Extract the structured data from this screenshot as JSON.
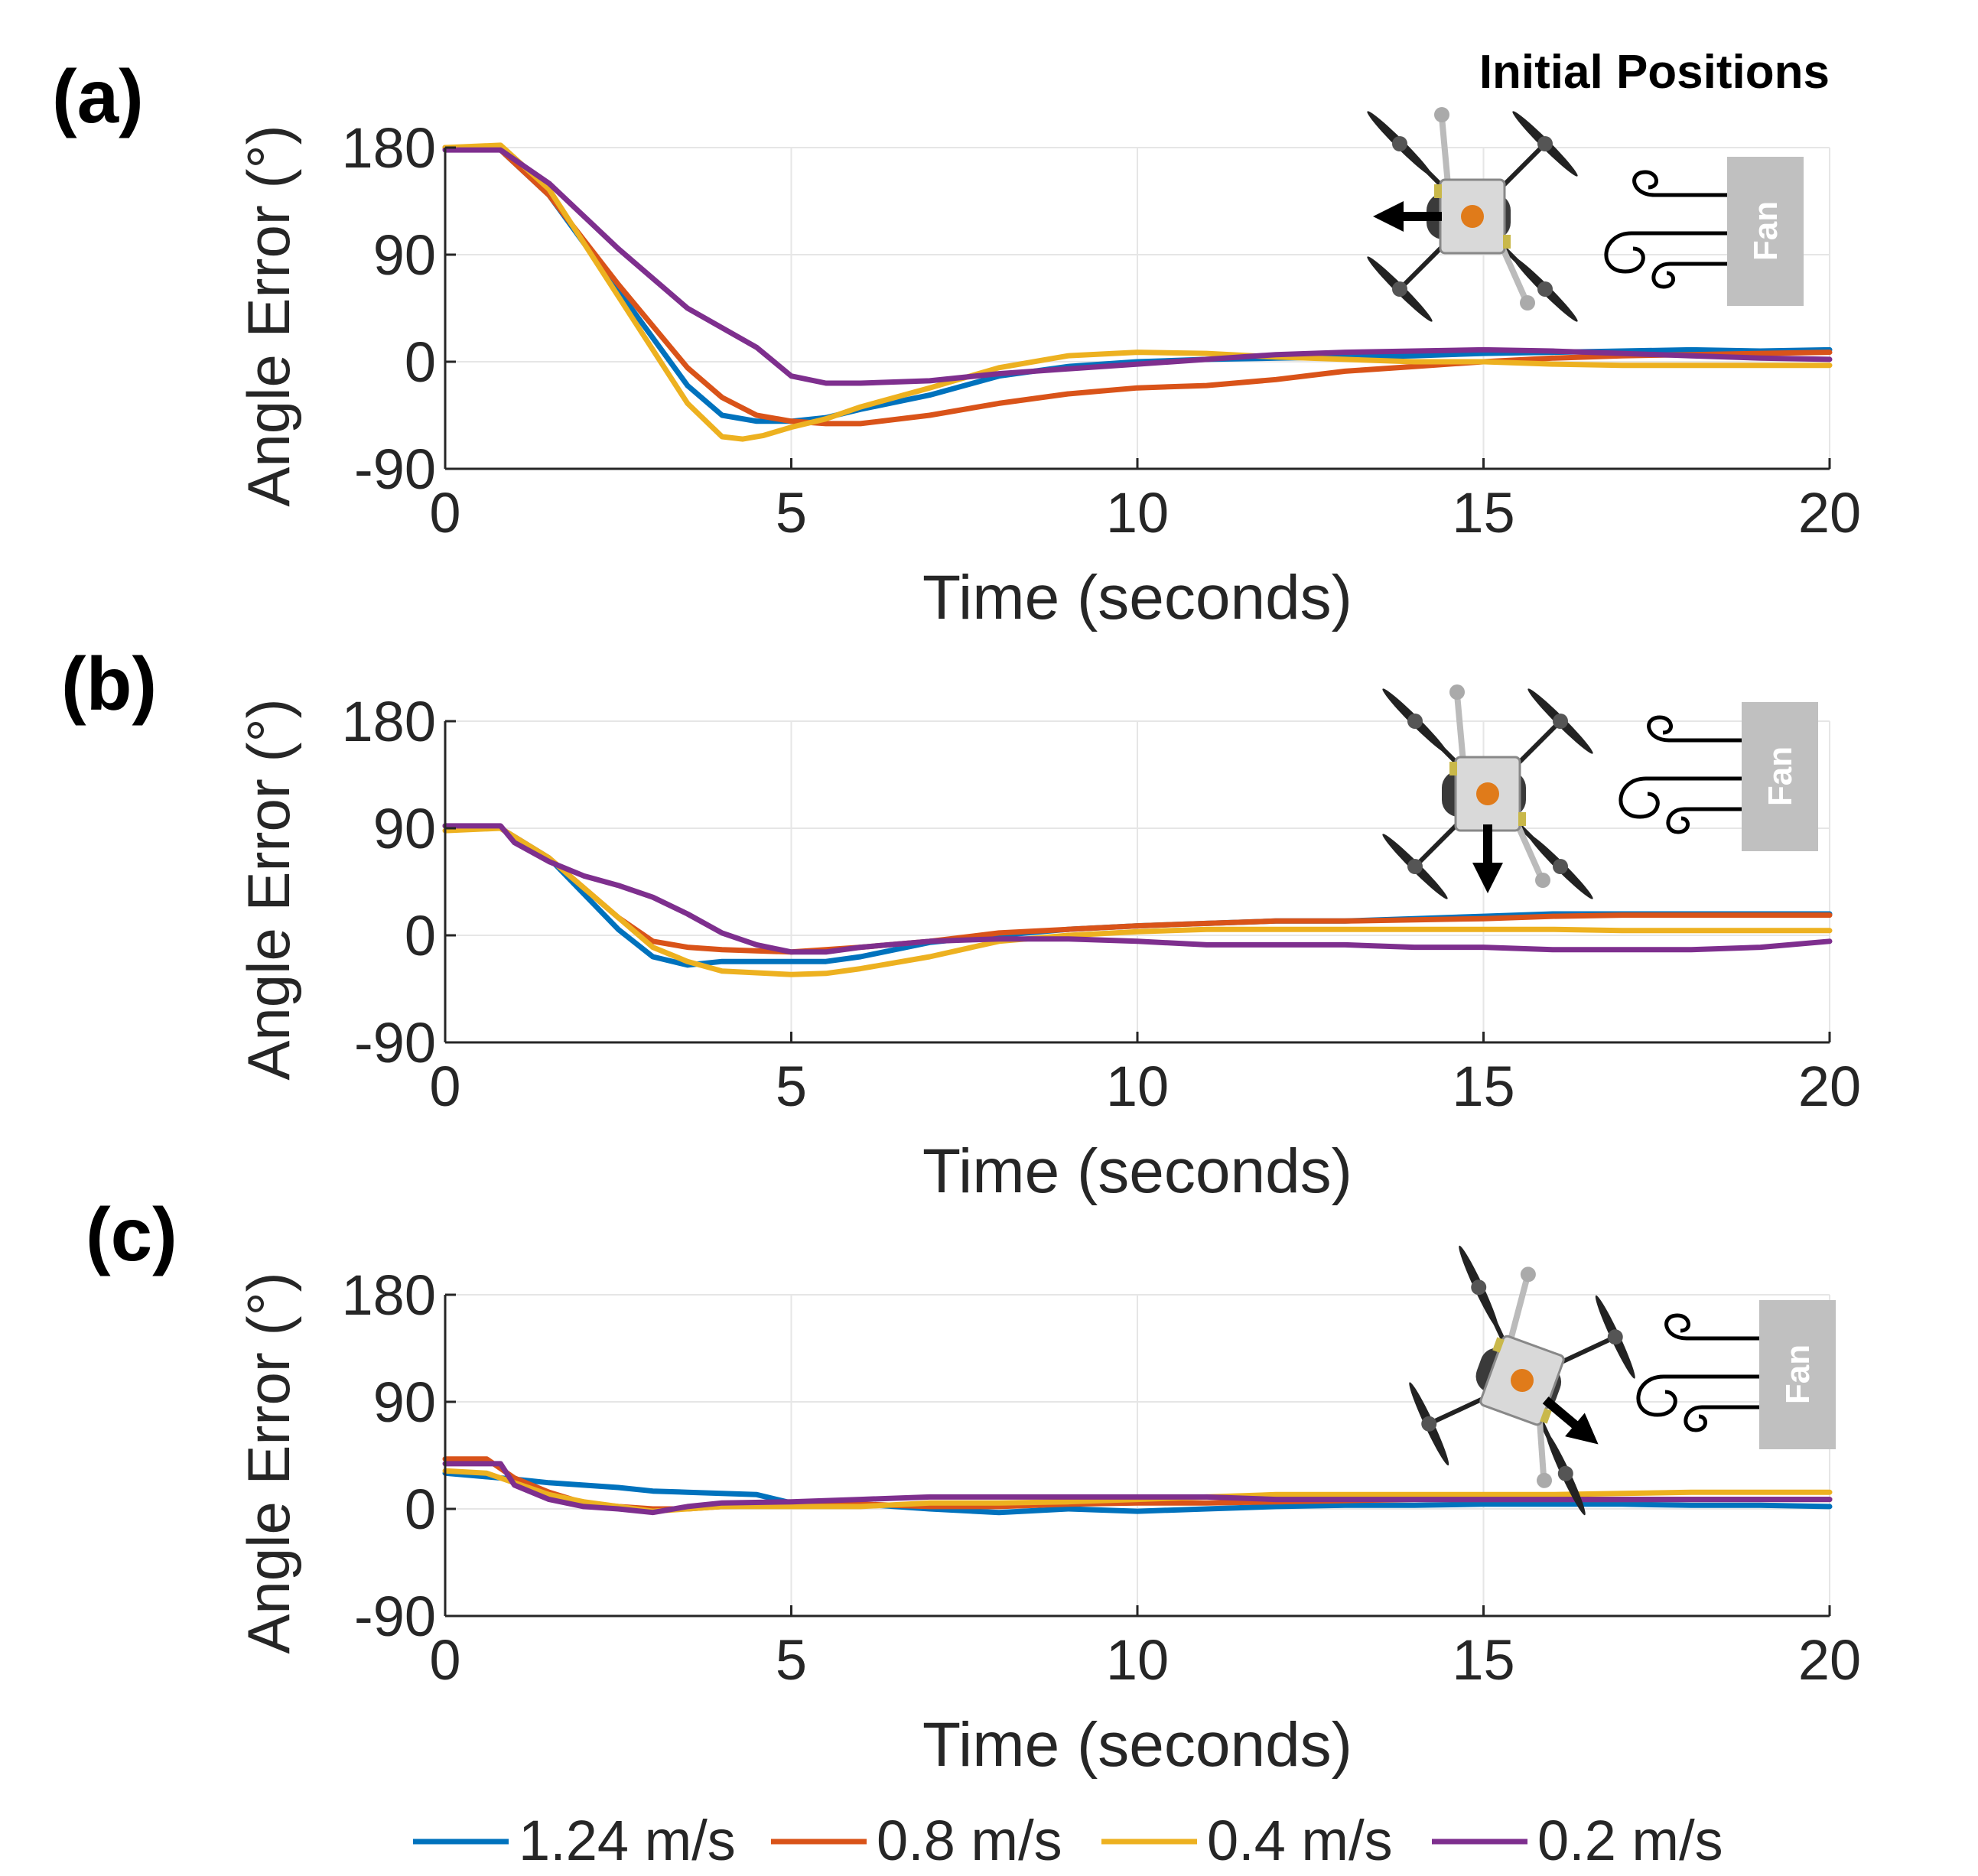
{
  "figure": {
    "header": "Initial Positions",
    "fan_label": "Fan"
  },
  "legend": [
    {
      "name": "1.24 m/s",
      "color": "#0072BD"
    },
    {
      "name": "0.8 m/s",
      "color": "#D95319"
    },
    {
      "name": "0.4 m/s",
      "color": "#EDB120"
    },
    {
      "name": "0.2 m/s",
      "color": "#7E2F8E"
    }
  ],
  "chart_data": [
    {
      "type": "line",
      "panel_label": "(a)",
      "xlabel": "Time (seconds)",
      "ylabel": "Angle Error (°)",
      "xlim": [
        0,
        20
      ],
      "ylim": [
        -90,
        180
      ],
      "xticks": [
        "0",
        "5",
        "10",
        "15",
        "20"
      ],
      "yticks": [
        "180",
        "90",
        "0",
        "-90"
      ],
      "grid": true,
      "drone_heading": "left",
      "series": [
        {
          "name": "1.24 m/s",
          "color": "#0072BD",
          "x": [
            0,
            0.8,
            1.5,
            2.5,
            3.5,
            4,
            4.5,
            5,
            5.5,
            6,
            7,
            8,
            9,
            10,
            11,
            12,
            13,
            14,
            15,
            16,
            17,
            18,
            19,
            20
          ],
          "y": [
            180,
            178,
            140,
            60,
            -20,
            -45,
            -50,
            -50,
            -47,
            -40,
            -28,
            -12,
            -4,
            0,
            2,
            3,
            4,
            5,
            7,
            8,
            9,
            10,
            9,
            10
          ]
        },
        {
          "name": "0.8 m/s",
          "color": "#D95319",
          "x": [
            0,
            0.8,
            1.5,
            2.5,
            3.5,
            4,
            4.5,
            5,
            5.5,
            6,
            7,
            8,
            9,
            10,
            11,
            12,
            13,
            14,
            15,
            16,
            17,
            18,
            19,
            20
          ],
          "y": [
            180,
            178,
            140,
            65,
            -5,
            -30,
            -45,
            -50,
            -52,
            -52,
            -45,
            -35,
            -27,
            -22,
            -20,
            -15,
            -8,
            -4,
            0,
            3,
            5,
            6,
            7,
            8
          ]
        },
        {
          "name": "0.4 m/s",
          "color": "#EDB120",
          "x": [
            0,
            0.8,
            1.5,
            2.5,
            3.5,
            4,
            4.3,
            4.6,
            5,
            5.5,
            6,
            7,
            8,
            9,
            10,
            11,
            12,
            13,
            14,
            15,
            16,
            17,
            18,
            19,
            20
          ],
          "y": [
            180,
            182,
            145,
            55,
            -35,
            -63,
            -65,
            -62,
            -55,
            -48,
            -38,
            -22,
            -5,
            5,
            8,
            7,
            4,
            2,
            0,
            0,
            -2,
            -3,
            -3,
            -3,
            -3
          ]
        },
        {
          "name": "0.2 m/s",
          "color": "#7E2F8E",
          "x": [
            0,
            0.8,
            1.5,
            2.5,
            3.5,
            4.5,
            5,
            5.5,
            6,
            7,
            8,
            9,
            10,
            11,
            12,
            13,
            14,
            15,
            16,
            17,
            18,
            19,
            20
          ],
          "y": [
            178,
            178,
            150,
            95,
            45,
            12,
            -12,
            -18,
            -18,
            -16,
            -10,
            -6,
            -2,
            2,
            6,
            8,
            9,
            10,
            9,
            7,
            5,
            3,
            2
          ]
        }
      ]
    },
    {
      "type": "line",
      "panel_label": "(b)",
      "xlabel": "Time (seconds)",
      "ylabel": "Angle Error (°)",
      "xlim": [
        0,
        20
      ],
      "ylim": [
        -90,
        180
      ],
      "xticks": [
        "0",
        "5",
        "10",
        "15",
        "20"
      ],
      "yticks": [
        "180",
        "90",
        "0",
        "-90"
      ],
      "grid": true,
      "drone_heading": "down",
      "series": [
        {
          "name": "1.24 m/s",
          "color": "#0072BD",
          "x": [
            0,
            0.8,
            1.5,
            2.5,
            3,
            3.5,
            4,
            5,
            5.5,
            6,
            7,
            8,
            9,
            10,
            11,
            12,
            13,
            14,
            15,
            16,
            17,
            18,
            19,
            20
          ],
          "y": [
            92,
            90,
            65,
            5,
            -18,
            -25,
            -22,
            -22,
            -22,
            -18,
            -6,
            0,
            5,
            8,
            10,
            12,
            12,
            14,
            16,
            18,
            18,
            18,
            18,
            18
          ]
        },
        {
          "name": "0.8 m/s",
          "color": "#D95319",
          "x": [
            0,
            0.8,
            1.5,
            2.5,
            3,
            3.5,
            4,
            5,
            5.5,
            6,
            7,
            8,
            9,
            10,
            11,
            12,
            13,
            14,
            15,
            16,
            17,
            18,
            19,
            20
          ],
          "y": [
            92,
            90,
            65,
            15,
            -5,
            -10,
            -12,
            -14,
            -12,
            -10,
            -5,
            2,
            5,
            8,
            10,
            12,
            12,
            13,
            14,
            16,
            17,
            17,
            17,
            17
          ]
        },
        {
          "name": "0.4 m/s",
          "color": "#EDB120",
          "x": [
            0,
            0.8,
            1.5,
            2.5,
            3,
            3.5,
            4,
            5,
            5.5,
            6,
            7,
            8,
            9,
            10,
            11,
            12,
            13,
            14,
            15,
            16,
            17,
            18,
            19,
            20
          ],
          "y": [
            88,
            90,
            65,
            15,
            -10,
            -22,
            -30,
            -33,
            -32,
            -28,
            -18,
            -5,
            0,
            3,
            5,
            5,
            5,
            5,
            5,
            5,
            4,
            4,
            4,
            4
          ]
        },
        {
          "name": "0.2 m/s",
          "color": "#7E2F8E",
          "x": [
            0,
            0.8,
            1,
            1.5,
            2,
            2.5,
            3,
            3.5,
            4,
            4.5,
            5,
            5.5,
            6,
            7,
            8,
            9,
            10,
            11,
            12,
            13,
            14,
            15,
            16,
            17,
            18,
            19,
            20
          ],
          "y": [
            92,
            92,
            78,
            62,
            50,
            42,
            32,
            18,
            2,
            -8,
            -14,
            -14,
            -10,
            -5,
            -3,
            -3,
            -5,
            -8,
            -8,
            -8,
            -10,
            -10,
            -12,
            -12,
            -12,
            -10,
            -5
          ]
        }
      ]
    },
    {
      "type": "line",
      "panel_label": "(c)",
      "xlabel": "Time (seconds)",
      "ylabel": "Angle Error (°)",
      "xlim": [
        0,
        20
      ],
      "ylim": [
        -90,
        180
      ],
      "xticks": [
        "0",
        "5",
        "10",
        "15",
        "20"
      ],
      "yticks": [
        "180",
        "90",
        "0",
        "-90"
      ],
      "grid": true,
      "drone_heading": "down-right",
      "series": [
        {
          "name": "1.24 m/s",
          "color": "#0072BD",
          "x": [
            0,
            1,
            1.5,
            2,
            2.5,
            3,
            3.5,
            4,
            4.5,
            5,
            6,
            7,
            8,
            9,
            10,
            11,
            12,
            13,
            14,
            15,
            16,
            17,
            18,
            19,
            20
          ],
          "y": [
            30,
            25,
            22,
            20,
            18,
            15,
            14,
            13,
            12,
            5,
            4,
            0,
            -3,
            0,
            -2,
            0,
            2,
            3,
            3,
            4,
            4,
            4,
            3,
            3,
            2
          ]
        },
        {
          "name": "0.8 m/s",
          "color": "#D95319",
          "x": [
            0,
            0.6,
            1,
            1.5,
            2,
            2.5,
            3,
            3.5,
            4,
            5,
            6,
            7,
            8,
            9,
            10,
            11,
            12,
            13,
            14,
            15,
            16,
            17,
            18,
            19,
            20
          ],
          "y": [
            42,
            42,
            26,
            14,
            5,
            2,
            0,
            0,
            2,
            3,
            4,
            2,
            2,
            4,
            5,
            5,
            6,
            7,
            8,
            8,
            8,
            8,
            8,
            8,
            8
          ]
        },
        {
          "name": "0.4 m/s",
          "color": "#EDB120",
          "x": [
            0,
            0.6,
            1,
            1.5,
            2,
            2.5,
            3,
            3.5,
            4,
            5,
            6,
            7,
            8,
            9,
            10,
            11,
            12,
            13,
            14,
            15,
            16,
            17,
            18,
            19,
            20
          ],
          "y": [
            32,
            30,
            22,
            12,
            6,
            2,
            -2,
            0,
            2,
            2,
            2,
            5,
            5,
            6,
            8,
            10,
            12,
            12,
            12,
            12,
            12,
            13,
            14,
            14,
            14
          ]
        },
        {
          "name": "0.2 m/s",
          "color": "#7E2F8E",
          "x": [
            0,
            0.8,
            1,
            1.5,
            2,
            2.5,
            3,
            3.5,
            4,
            5,
            6,
            7,
            8,
            9,
            10,
            11,
            12,
            13,
            14,
            15,
            16,
            17,
            18,
            19,
            20
          ],
          "y": [
            38,
            38,
            20,
            8,
            2,
            0,
            -3,
            2,
            5,
            6,
            8,
            10,
            10,
            10,
            10,
            10,
            8,
            8,
            8,
            8,
            8,
            8,
            8,
            8,
            8
          ]
        }
      ]
    }
  ]
}
